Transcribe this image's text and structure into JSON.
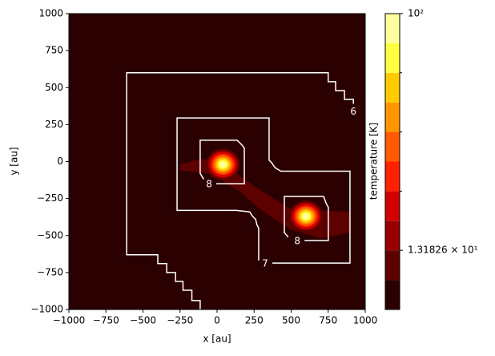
{
  "chart_data": {
    "type": "contour",
    "xlabel": "x [au]",
    "ylabel": "y [au]",
    "xlim": [
      -1000,
      1000
    ],
    "ylim": [
      -1000,
      1000
    ],
    "xticks": [
      {
        "value": -1000,
        "label": "−1000"
      },
      {
        "value": -750,
        "label": "−750"
      },
      {
        "value": -500,
        "label": "−500"
      },
      {
        "value": -250,
        "label": "−250"
      },
      0,
      250,
      500,
      750,
      1000
    ],
    "yticks": [
      {
        "value": -1000,
        "label": "−1000"
      },
      {
        "value": -750,
        "label": "−750"
      },
      {
        "value": -500,
        "label": "−500"
      },
      {
        "value": -250,
        "label": "−250"
      },
      0,
      250,
      500,
      750,
      1000
    ],
    "colorbar": {
      "label": "temperature [K]",
      "scale": "log",
      "clim": [
        7.94,
        100
      ],
      "levels": [
        7.94,
        10.23,
        13.18,
        16.98,
        21.88,
        28.18,
        36.31,
        46.77,
        60.26,
        77.62,
        100
      ],
      "colors": [
        "#2b0000",
        "#5c0000",
        "#980000",
        "#d20000",
        "#ff2000",
        "#ff5a00",
        "#ff9600",
        "#ffcc00",
        "#ffff40",
        "#ffff9c"
      ],
      "ticks": [
        {
          "value": 13.1826,
          "label": "1.31826 × 10¹"
        },
        {
          "value": 100,
          "label": "10²"
        }
      ],
      "minor_ticks": [
        21.88,
        36.31,
        60.26
      ]
    },
    "filament": {
      "x": [
        -250,
        -100,
        100,
        300,
        500,
        700,
        900,
        900,
        700,
        500,
        300,
        150,
        -50,
        -250
      ],
      "y": [
        -20,
        20,
        -60,
        -200,
        -320,
        -330,
        -340,
        -480,
        -520,
        -460,
        -330,
        -200,
        -80,
        -60
      ]
    },
    "hotspots": [
      {
        "x": 40,
        "y": -20
      },
      {
        "x": 600,
        "y": -370
      }
    ],
    "contours": [
      {
        "level": 6,
        "x": [
          920,
          920,
          860,
          860,
          800,
          800,
          750,
          750,
          -610,
          -610,
          -400,
          -400,
          -340,
          -340,
          -280,
          -280,
          -230,
          -230,
          -170,
          -170,
          -114,
          -114
        ],
        "y": [
          390,
          420,
          420,
          480,
          480,
          540,
          540,
          600,
          600,
          -630,
          -630,
          -690,
          -690,
          -750,
          -750,
          -810,
          -810,
          -870,
          -870,
          -940,
          -940,
          -1000
        ]
      },
      {
        "level": 7,
        "x": [
          373,
          897,
          897,
          430,
          390,
          370,
          351,
          351,
          -270,
          -270,
          130,
          220,
          240,
          260,
          270,
          281,
          281
        ],
        "y": [
          -686,
          -686,
          -65,
          -65,
          -40,
          -10,
          10,
          295,
          295,
          -330,
          -330,
          -340,
          -370,
          -390,
          -430,
          -450,
          -669
        ]
      },
      {
        "level": 8,
        "x": [
          -5,
          184,
          184,
          170,
          150,
          135,
          -114,
          -114,
          -90
        ],
        "y": [
          -150,
          -150,
          90,
          110,
          130,
          144,
          144,
          -80,
          -120
        ]
      },
      {
        "level": 8,
        "x": [
          590,
          751,
          751,
          735,
          719,
          454,
          454,
          480
        ],
        "y": [
          -534,
          -534,
          -310,
          -280,
          -236,
          -236,
          -480,
          -510
        ]
      }
    ]
  }
}
